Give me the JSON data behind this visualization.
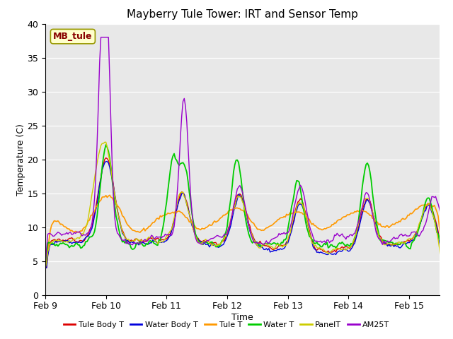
{
  "title": "Mayberry Tule Tower: IRT and Sensor Temp",
  "xlabel": "Time",
  "ylabel": "Temperature (C)",
  "ylim": [
    0,
    40
  ],
  "xlim_days": [
    0,
    6.5
  ],
  "xtick_labels": [
    "Feb 9",
    "Feb 10",
    "Feb 11",
    "Feb 12",
    "Feb 13",
    "Feb 14",
    "Feb 15"
  ],
  "xtick_positions": [
    0,
    1,
    2,
    3,
    4,
    5,
    6
  ],
  "annotation_text": "MB_tule",
  "bg_color": "#e8e8e8",
  "series": {
    "Tule Body T": {
      "color": "#dd0000",
      "lw": 1.0
    },
    "Water Body T": {
      "color": "#0000dd",
      "lw": 1.0
    },
    "Tule T": {
      "color": "#ff9900",
      "lw": 1.2
    },
    "Water T": {
      "color": "#00cc00",
      "lw": 1.3
    },
    "PanelT": {
      "color": "#cccc00",
      "lw": 1.0
    },
    "AM25T": {
      "color": "#9900cc",
      "lw": 1.0
    }
  }
}
